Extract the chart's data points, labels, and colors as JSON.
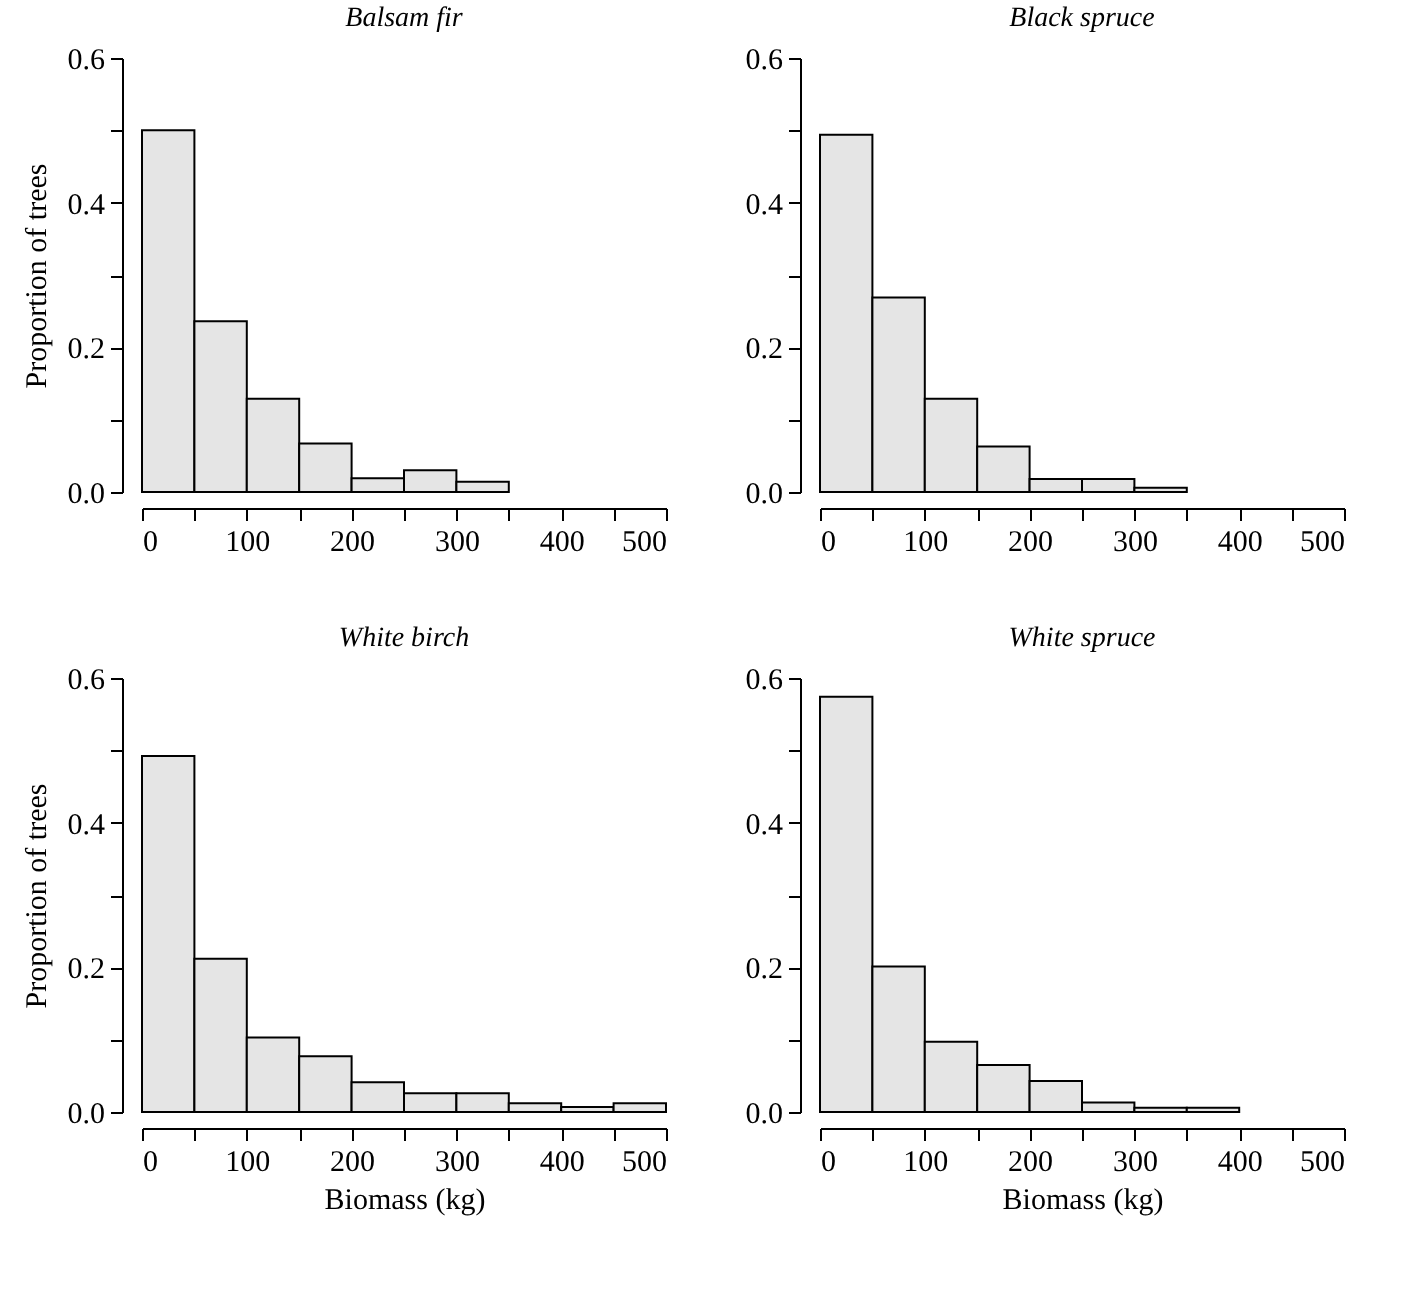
{
  "chart_data": [
    {
      "type": "histogram",
      "title": "Balsam fir",
      "ylabel": "Proportion of trees",
      "color": "#e5e5e5",
      "bins": [
        0,
        50,
        100,
        150,
        200,
        250,
        300,
        350
      ],
      "values": [
        0.5,
        0.236,
        0.129,
        0.067,
        0.019,
        0.03,
        0.014
      ],
      "xlim": [
        0,
        500
      ],
      "ylim": [
        0,
        0.6
      ],
      "xticks": [
        0,
        {
          "value": 50,
          "label": null
        },
        100,
        {
          "value": 150,
          "label": null
        },
        200,
        {
          "value": 250,
          "label": null
        },
        300,
        {
          "value": 350,
          "label": null
        },
        400,
        {
          "value": 450,
          "label": null
        },
        500
      ],
      "yticks": [
        {
          "value": 0,
          "label": "0.0"
        },
        {
          "value": 0.1,
          "label": null
        },
        0.2,
        {
          "value": 0.3,
          "label": null
        },
        0.4,
        {
          "value": 0.5,
          "label": null
        },
        0.6
      ]
    },
    {
      "type": "histogram",
      "title": "Black spruce",
      "color": "#e5e5e5",
      "bins": [
        0,
        50,
        100,
        150,
        200,
        250,
        300,
        350
      ],
      "values": [
        0.494,
        0.269,
        0.129,
        0.063,
        0.018,
        0.018,
        0.006
      ],
      "xlim": [
        0,
        500
      ],
      "ylim": [
        0,
        0.6
      ],
      "xticks": [
        0,
        {
          "value": 50,
          "label": null
        },
        100,
        {
          "value": 150,
          "label": null
        },
        200,
        {
          "value": 250,
          "label": null
        },
        300,
        {
          "value": 350,
          "label": null
        },
        400,
        {
          "value": 450,
          "label": null
        },
        500
      ],
      "yticks": [
        {
          "value": 0,
          "label": "0.0"
        },
        {
          "value": 0.1,
          "label": null
        },
        0.2,
        {
          "value": 0.3,
          "label": null
        },
        0.4,
        {
          "value": 0.5,
          "label": null
        },
        0.6
      ]
    },
    {
      "type": "histogram",
      "title": "White birch",
      "xlabel": "Biomass (kg)",
      "ylabel": "Proportion of trees",
      "color": "#e5e5e5",
      "bins": [
        0,
        50,
        100,
        150,
        200,
        250,
        300,
        350,
        400,
        450,
        500
      ],
      "values": [
        0.492,
        0.212,
        0.103,
        0.077,
        0.041,
        0.026,
        0.026,
        0.012,
        0.007,
        0.012
      ],
      "xlim": [
        0,
        500
      ],
      "ylim": [
        0,
        0.6
      ],
      "xticks": [
        0,
        {
          "value": 50,
          "label": null
        },
        100,
        {
          "value": 150,
          "label": null
        },
        200,
        {
          "value": 250,
          "label": null
        },
        300,
        {
          "value": 350,
          "label": null
        },
        400,
        {
          "value": 450,
          "label": null
        },
        500
      ],
      "yticks": [
        {
          "value": 0,
          "label": "0.0"
        },
        {
          "value": 0.1,
          "label": null
        },
        0.2,
        {
          "value": 0.3,
          "label": null
        },
        0.4,
        {
          "value": 0.5,
          "label": null
        },
        0.6
      ]
    },
    {
      "type": "histogram",
      "title": "White spruce",
      "xlabel": "Biomass (kg)",
      "color": "#e5e5e5",
      "bins": [
        0,
        50,
        100,
        150,
        200,
        250,
        300,
        350,
        400
      ],
      "values": [
        0.574,
        0.201,
        0.097,
        0.065,
        0.043,
        0.013,
        0.006,
        0.006
      ],
      "xlim": [
        0,
        500
      ],
      "ylim": [
        0,
        0.6
      ],
      "xticks": [
        0,
        {
          "value": 50,
          "label": null
        },
        100,
        {
          "value": 150,
          "label": null
        },
        200,
        {
          "value": 250,
          "label": null
        },
        300,
        {
          "value": 350,
          "label": null
        },
        400,
        {
          "value": 450,
          "label": null
        },
        500
      ],
      "yticks": [
        {
          "value": 0,
          "label": "0.0"
        },
        {
          "value": 0.1,
          "label": null
        },
        0.2,
        {
          "value": 0.3,
          "label": null
        },
        0.4,
        {
          "value": 0.5,
          "label": null
        },
        0.6
      ]
    }
  ]
}
